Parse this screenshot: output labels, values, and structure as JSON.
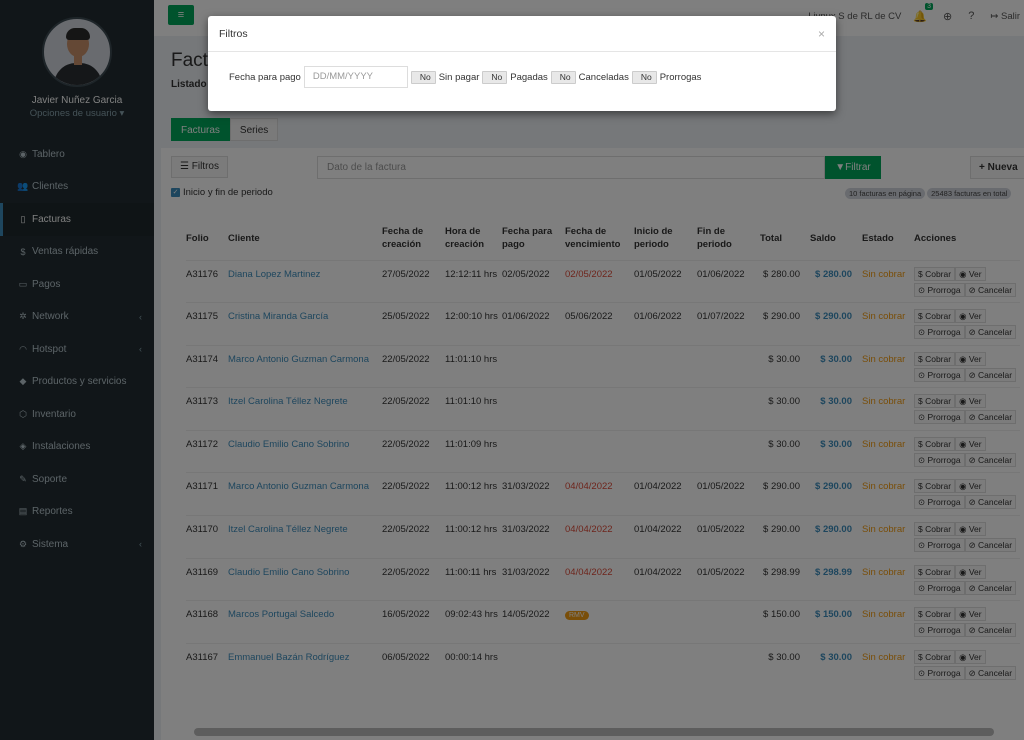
{
  "user": {
    "name": "Javier Nuñez Garcia",
    "options": "Opciones de usuario ▾"
  },
  "nav": [
    {
      "label": "Tablero",
      "icon": "dashboard-icon",
      "glyph": "◉",
      "active": false,
      "chev": ""
    },
    {
      "label": "Clientes",
      "icon": "users-icon",
      "glyph": "👥",
      "active": false,
      "chev": ""
    },
    {
      "label": "Facturas",
      "icon": "file-icon",
      "glyph": "▯",
      "active": true,
      "chev": ""
    },
    {
      "label": "Ventas rápidas",
      "icon": "dollar-icon",
      "glyph": "$",
      "active": false,
      "chev": ""
    },
    {
      "label": "Pagos",
      "icon": "money-icon",
      "glyph": "▭",
      "active": false,
      "chev": ""
    },
    {
      "label": "Network",
      "icon": "network-icon",
      "glyph": "✲",
      "active": false,
      "chev": "‹"
    },
    {
      "label": "Hotspot",
      "icon": "wifi-icon",
      "glyph": "◠",
      "active": false,
      "chev": "‹"
    },
    {
      "label": "Productos y servicios",
      "icon": "tags-icon",
      "glyph": "◆",
      "active": false,
      "chev": ""
    },
    {
      "label": "Inventario",
      "icon": "cubes-icon",
      "glyph": "⬡",
      "active": false,
      "chev": ""
    },
    {
      "label": "Instalaciones",
      "icon": "wrench-icon",
      "glyph": "◈",
      "active": false,
      "chev": ""
    },
    {
      "label": "Soporte",
      "icon": "tools-icon",
      "glyph": "✎",
      "active": false,
      "chev": ""
    },
    {
      "label": "Reportes",
      "icon": "book-icon",
      "glyph": "▤",
      "active": false,
      "chev": ""
    },
    {
      "label": "Sistema",
      "icon": "cogs-icon",
      "glyph": "⚙",
      "active": false,
      "chev": "‹"
    }
  ],
  "header": {
    "menu_glyph": "≡",
    "company": "Livnux S de RL de CV",
    "notif_count": "3",
    "logout": "Salir"
  },
  "page": {
    "title": "Facturas",
    "subtitle": "Listado"
  },
  "tabs": [
    "Facturas",
    "Series"
  ],
  "toolbar": {
    "filtros": "Filtros",
    "search_placeholder": "Dato de la factura",
    "filtrar": "Filtrar",
    "nueva": "Nueva",
    "periodo": "Inicio y fin de periodo",
    "count_page": "10 facturas en página",
    "count_total": "25483 facturas en total"
  },
  "table": {
    "headers": [
      "Folio",
      "Cliente",
      "Fecha de creación",
      "Hora de creación",
      "Fecha para pago",
      "Fecha de vencimiento",
      "Inicio de periodo",
      "Fin de periodo",
      "Total",
      "Saldo",
      "Estado",
      "Acciones"
    ],
    "rows": [
      {
        "folio": "A31176",
        "cliente": "Diana Lopez Martinez",
        "creacion": "27/05/2022",
        "hora": "12:12:11 hrs",
        "pago": "02/05/2022",
        "venc": "02/05/2022",
        "venc_red": true,
        "inicio": "01/05/2022",
        "fin": "01/06/2022",
        "total": "$ 280.00",
        "saldo": "$ 280.00",
        "estado": "Sin cobrar"
      },
      {
        "folio": "A31175",
        "cliente": "Cristina Miranda García",
        "creacion": "25/05/2022",
        "hora": "12:00:10 hrs",
        "pago": "01/06/2022",
        "venc": "05/06/2022",
        "venc_red": false,
        "inicio": "01/06/2022",
        "fin": "01/07/2022",
        "total": "$ 290.00",
        "saldo": "$ 290.00",
        "estado": "Sin cobrar"
      },
      {
        "folio": "A31174",
        "cliente": "Marco Antonio Guzman Carmona",
        "creacion": "22/05/2022",
        "hora": "11:01:10 hrs",
        "pago": "",
        "venc": "",
        "venc_red": false,
        "inicio": "",
        "fin": "",
        "total": "$ 30.00",
        "saldo": "$ 30.00",
        "estado": "Sin cobrar"
      },
      {
        "folio": "A31173",
        "cliente": "Itzel Carolina Téllez Negrete",
        "creacion": "22/05/2022",
        "hora": "11:01:10 hrs",
        "pago": "",
        "venc": "",
        "venc_red": false,
        "inicio": "",
        "fin": "",
        "total": "$ 30.00",
        "saldo": "$ 30.00",
        "estado": "Sin cobrar"
      },
      {
        "folio": "A31172",
        "cliente": "Claudio Emilio Cano Sobrino",
        "creacion": "22/05/2022",
        "hora": "11:01:09 hrs",
        "pago": "",
        "venc": "",
        "venc_red": false,
        "inicio": "",
        "fin": "",
        "total": "$ 30.00",
        "saldo": "$ 30.00",
        "estado": "Sin cobrar"
      },
      {
        "folio": "A31171",
        "cliente": "Marco Antonio Guzman Carmona",
        "creacion": "22/05/2022",
        "hora": "11:00:12 hrs",
        "pago": "31/03/2022",
        "venc": "04/04/2022",
        "venc_red": true,
        "inicio": "01/04/2022",
        "fin": "01/05/2022",
        "total": "$ 290.00",
        "saldo": "$ 290.00",
        "estado": "Sin cobrar"
      },
      {
        "folio": "A31170",
        "cliente": "Itzel Carolina Téllez Negrete",
        "creacion": "22/05/2022",
        "hora": "11:00:12 hrs",
        "pago": "31/03/2022",
        "venc": "04/04/2022",
        "venc_red": true,
        "inicio": "01/04/2022",
        "fin": "01/05/2022",
        "total": "$ 290.00",
        "saldo": "$ 290.00",
        "estado": "Sin cobrar"
      },
      {
        "folio": "A31169",
        "cliente": "Claudio Emilio Cano Sobrino",
        "creacion": "22/05/2022",
        "hora": "11:00:11 hrs",
        "pago": "31/03/2022",
        "venc": "04/04/2022",
        "venc_red": true,
        "inicio": "01/04/2022",
        "fin": "01/05/2022",
        "total": "$ 298.99",
        "saldo": "$ 298.99",
        "estado": "Sin cobrar"
      },
      {
        "folio": "A31168",
        "cliente": "Marcos Portugal Salcedo",
        "creacion": "16/05/2022",
        "hora": "09:02:43 hrs",
        "pago": "14/05/2022",
        "venc": "RMV",
        "venc_badge": true,
        "venc_red": false,
        "inicio": "",
        "fin": "",
        "total": "$ 150.00",
        "saldo": "$ 150.00",
        "estado": "Sin cobrar"
      },
      {
        "folio": "A31167",
        "cliente": "Emmanuel Bazán Rodríguez",
        "creacion": "06/05/2022",
        "hora": "00:00:14 hrs",
        "pago": "",
        "venc": "",
        "venc_red": false,
        "inicio": "",
        "fin": "",
        "total": "$ 30.00",
        "saldo": "$ 30.00",
        "estado": "Sin cobrar"
      }
    ],
    "actions": {
      "cobrar": "$ Cobrar",
      "ver": "◉ Ver",
      "prorroga": "⊙ Prorroga",
      "cancelar": "⊘ Cancelar"
    }
  },
  "modal": {
    "title": "Filtros",
    "close": "×",
    "fecha_label": "Fecha para pago",
    "fecha_placeholder": "DD/MM/YYYY",
    "toggle_label": "No",
    "sin_pagar": "Sin pagar",
    "pagadas": "Pagadas",
    "canceladas": "Canceladas",
    "prorrogas": "Prorrogas"
  }
}
